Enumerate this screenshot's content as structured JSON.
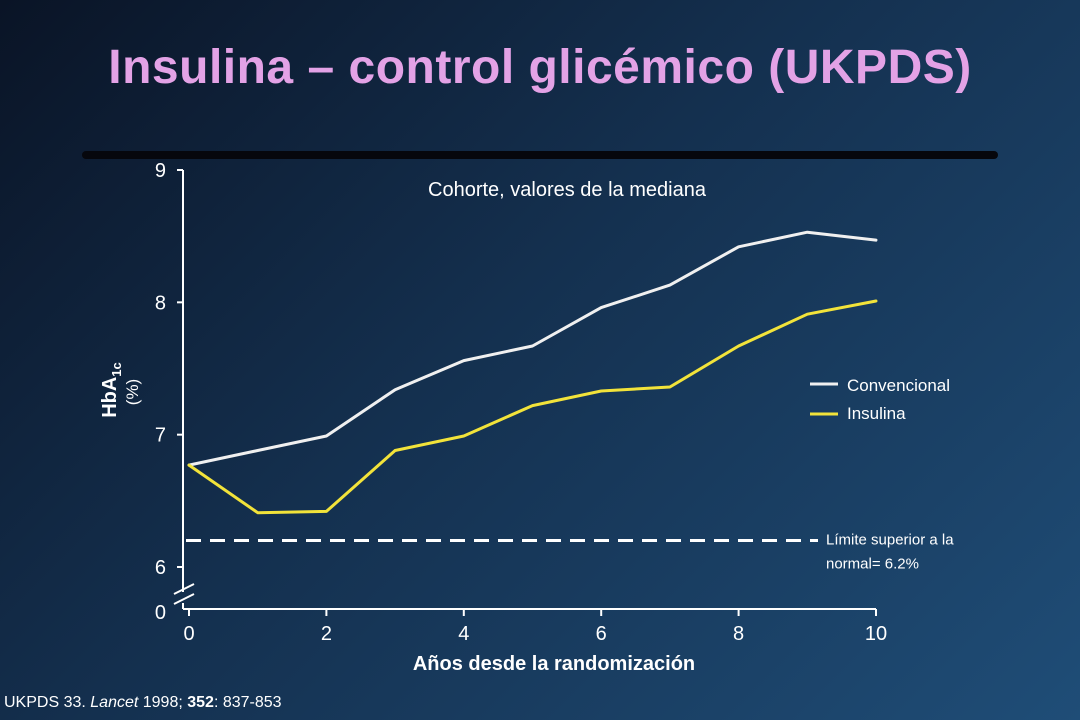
{
  "title": "Insulina – control glicémico (UKPDS)",
  "citation": {
    "prefix": "UKPDS 33. ",
    "journal": "Lancet",
    "year": " 1998; ",
    "volume": "352",
    "pages": ": 837-853"
  },
  "colors": {
    "title": "#e3a2e6",
    "convencional": "#f0f0f0",
    "insulina": "#f2e33a",
    "text": "#ffffff",
    "background": "#14304f"
  },
  "chart_data": {
    "type": "line",
    "subtitle": "Cohorte, valores de la mediana",
    "xlabel": "Años desde la randomización",
    "ylabel": "HbA1c",
    "ylabel_main": "HbA",
    "ylabel_sub": "1c",
    "ylabel_unit": "(%)",
    "xlim": [
      0,
      10
    ],
    "ylim": [
      6,
      9
    ],
    "axis_break": true,
    "x_ticks": [
      0,
      2,
      4,
      6,
      8,
      10
    ],
    "x_tick_labels": [
      "0",
      "2",
      "4",
      "6",
      "8",
      "10"
    ],
    "y_ticks": [
      6,
      7,
      8,
      9
    ],
    "y_tick_labels": [
      "6",
      "7",
      "8",
      "9"
    ],
    "y_zero_label": "0",
    "legend_position": "right",
    "x": [
      0,
      1,
      2,
      3,
      4,
      5,
      6,
      7,
      8,
      9,
      10
    ],
    "series": [
      {
        "name": "Convencional",
        "color": "#f0f0f0",
        "values": [
          6.77,
          6.88,
          6.99,
          7.34,
          7.56,
          7.67,
          7.96,
          8.13,
          8.42,
          8.53,
          8.47
        ]
      },
      {
        "name": "Insulina",
        "color": "#f2e33a",
        "values": [
          6.77,
          6.41,
          6.42,
          6.88,
          6.99,
          7.22,
          7.33,
          7.36,
          7.67,
          7.91,
          8.01
        ]
      }
    ],
    "reference_line": {
      "value": 6.2,
      "label_line1": "Límite superior a la",
      "label_line2": "normal= 6.2%"
    }
  }
}
